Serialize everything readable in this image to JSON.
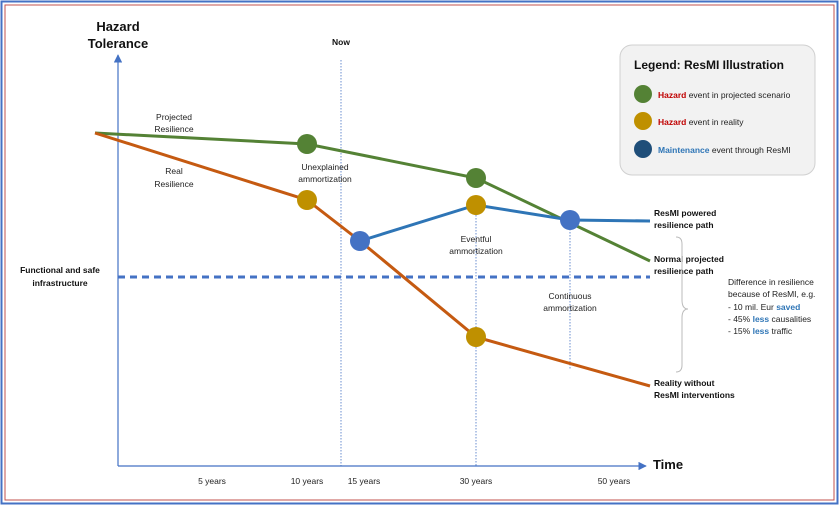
{
  "y_axis_label_line1": "Hazard",
  "y_axis_label_line2": "Tolerance",
  "x_axis_label": "Time",
  "now_label": "Now",
  "ticks": [
    "5 years",
    "10 years",
    "15 years",
    "30 years",
    "50 years"
  ],
  "labels": {
    "projected_line1": "Projected",
    "projected_line2": "Resilience",
    "real_line1": "Real",
    "real_line2": "Resilience",
    "unexplained_line1": "Unexplained",
    "unexplained_line2": "ammortization",
    "eventful_line1": "Eventful",
    "eventful_line2": "ammortization",
    "continuous_line1": "Continuous",
    "continuous_line2": "ammortization",
    "functional_line1": "Functional and safe",
    "functional_line2": "infrastructure",
    "resmi_path_line1": "ResMI powered",
    "resmi_path_line2": "resilience path",
    "normal_path_line1": "Normal projected",
    "normal_path_line2": "resilience path",
    "reality_line1": "Reality without",
    "reality_line2": "ResMI interventions"
  },
  "difference": {
    "line1": "Difference in resilience",
    "line2": "because of ResMI, e.g.",
    "item1_prefix": "- 10 mil. Eur ",
    "item1_highlight": "saved",
    "item2_prefix": "- 45% ",
    "item2_highlight": "less",
    "item2_suffix": " causalities",
    "item3_prefix": "- 15% ",
    "item3_highlight": "less",
    "item3_suffix": " traffic"
  },
  "legend": {
    "title": "Legend: ResMI Illustration",
    "items": [
      {
        "keyword": "Hazard",
        "rest": " event in projected scenario",
        "color": "#548235",
        "keyword_color": "#c00000"
      },
      {
        "keyword": "Hazard",
        "rest": " event in reality",
        "color": "#bf9000",
        "keyword_color": "#c00000"
      },
      {
        "keyword": "Maintenance",
        "rest": " event through ResMI",
        "color": "#2e75b6",
        "keyword_color": "#2e75b6"
      }
    ]
  },
  "colors": {
    "projected": "#548235",
    "real": "#c55a11",
    "resmi": "#2e75b6",
    "hazard_projected": "#548235",
    "hazard_real": "#bf9000",
    "maintenance": "#4472c4",
    "axis": "#4472c4",
    "threshold": "#4472c4",
    "highlight": "#2e75b6"
  }
}
